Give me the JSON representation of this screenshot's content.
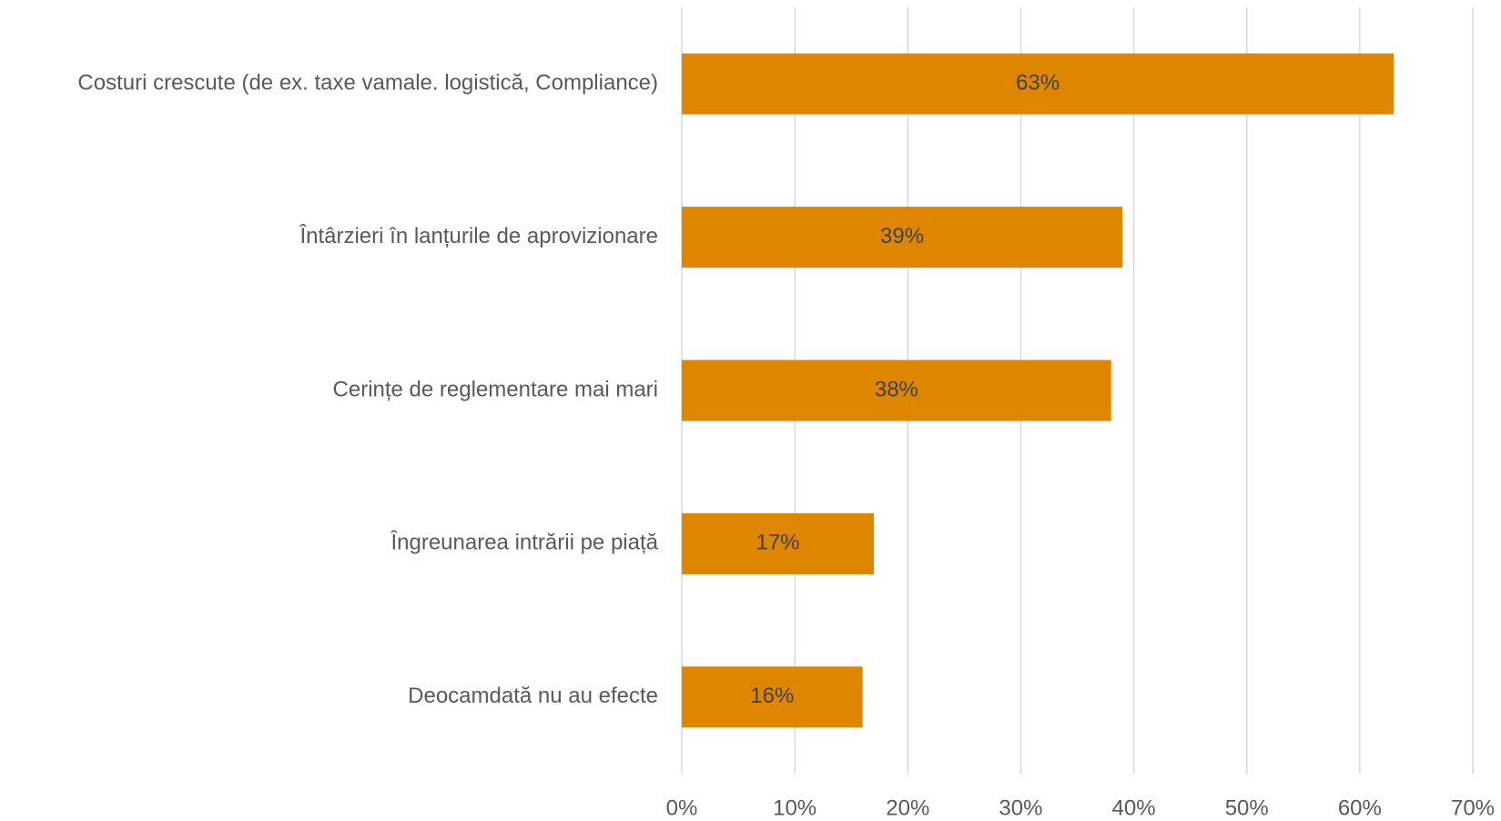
{
  "chart_data": {
    "type": "bar",
    "orientation": "horizontal",
    "categories": [
      "Costuri crescute (de ex. taxe vamale. logistică, Compliance)",
      "Întârzieri în lanțurile de aprovizionare",
      "Cerințe de reglementare mai mari",
      "Îngreunarea intrării pe piață",
      "Deocamdată nu au efecte"
    ],
    "values": [
      63,
      39,
      38,
      17,
      16
    ],
    "value_labels": [
      "63%",
      "39%",
      "38%",
      "17%",
      "16%"
    ],
    "color": "#de8600",
    "xlim": [
      0,
      70
    ],
    "xticks": [
      {
        "value": 0,
        "label": "0%"
      },
      {
        "value": 10,
        "label": "10%"
      },
      {
        "value": 20,
        "label": "20%"
      },
      {
        "value": 30,
        "label": "30%"
      },
      {
        "value": 40,
        "label": "40%"
      },
      {
        "value": 50,
        "label": "50%"
      },
      {
        "value": 60,
        "label": "60%"
      },
      {
        "value": 70,
        "label": "70%"
      }
    ],
    "grid": true
  }
}
